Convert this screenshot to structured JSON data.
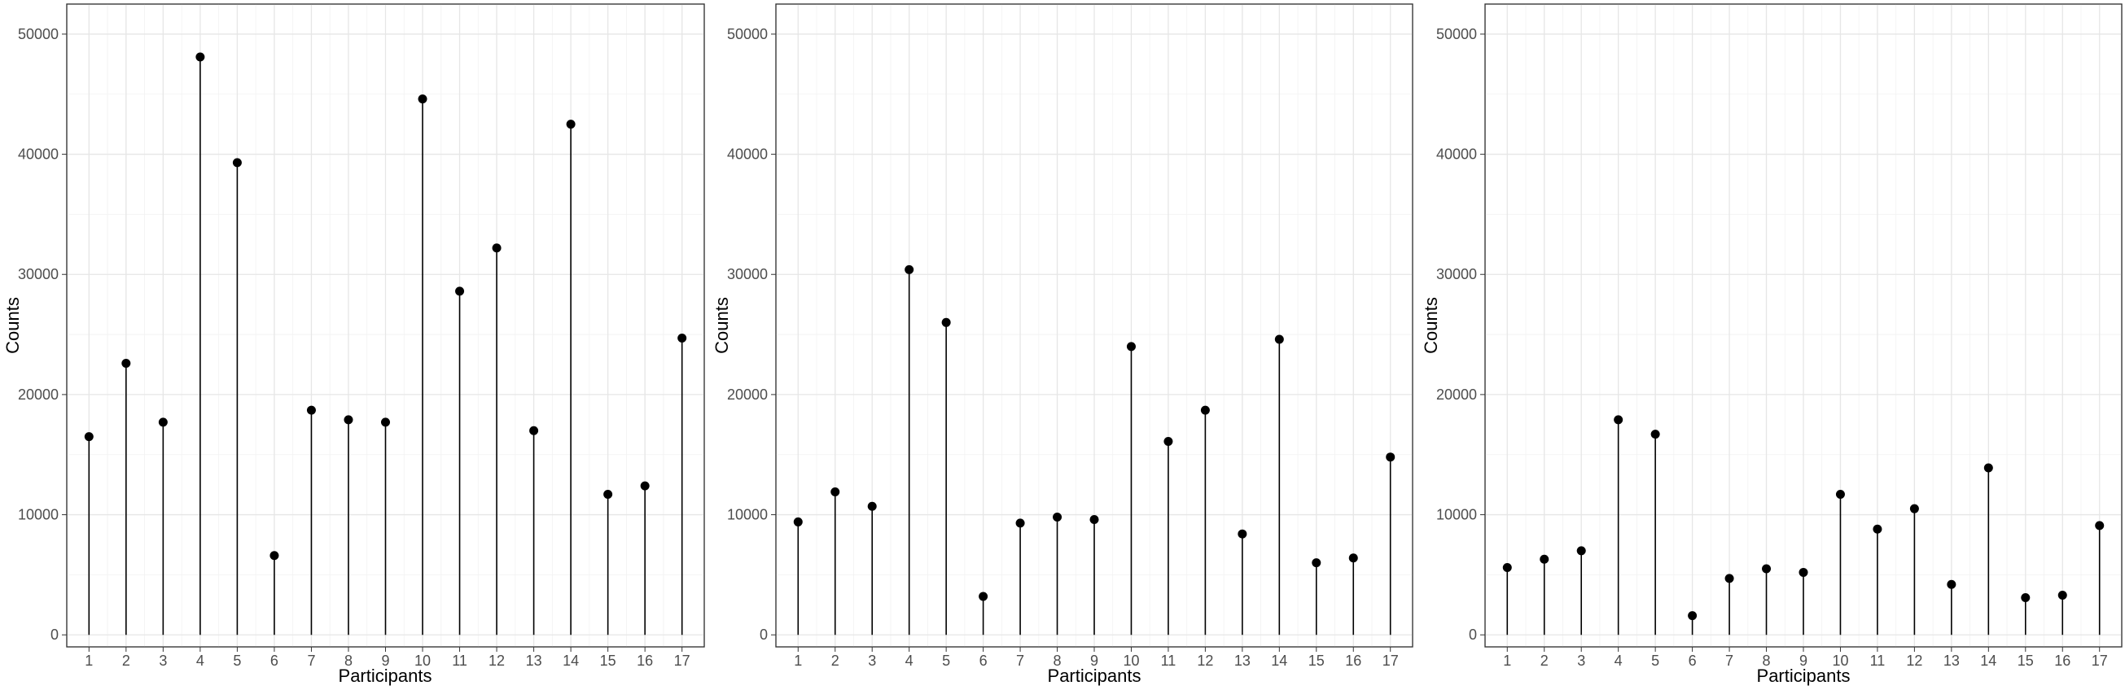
{
  "chart_data": [
    {
      "type": "lollipop",
      "xlabel": "Participants",
      "ylabel": "Counts",
      "categories": [
        "1",
        "2",
        "3",
        "4",
        "5",
        "6",
        "7",
        "8",
        "9",
        "10",
        "11",
        "12",
        "13",
        "14",
        "15",
        "16",
        "17"
      ],
      "values": [
        16500,
        22600,
        17700,
        48100,
        39300,
        6600,
        18700,
        17900,
        17700,
        44600,
        28600,
        32200,
        17000,
        42500,
        11700,
        12400,
        24700
      ],
      "yticks": [
        0,
        10000,
        20000,
        30000,
        40000,
        50000
      ],
      "ylim": [
        -1000,
        52500
      ],
      "grid": true
    },
    {
      "type": "lollipop",
      "xlabel": "Participants",
      "ylabel": "Counts",
      "categories": [
        "1",
        "2",
        "3",
        "4",
        "5",
        "6",
        "7",
        "8",
        "9",
        "10",
        "11",
        "12",
        "13",
        "14",
        "15",
        "16",
        "17"
      ],
      "values": [
        9400,
        11900,
        10700,
        30400,
        26000,
        3200,
        9300,
        9800,
        9600,
        24000,
        16100,
        18700,
        8400,
        24600,
        6000,
        6400,
        14800
      ],
      "yticks": [
        0,
        10000,
        20000,
        30000,
        40000,
        50000
      ],
      "ylim": [
        -1000,
        52500
      ],
      "grid": true
    },
    {
      "type": "lollipop",
      "xlabel": "Participants",
      "ylabel": "Counts",
      "categories": [
        "1",
        "2",
        "3",
        "4",
        "5",
        "6",
        "7",
        "8",
        "9",
        "10",
        "11",
        "12",
        "13",
        "14",
        "15",
        "16",
        "17"
      ],
      "values": [
        5600,
        6300,
        7000,
        17900,
        16700,
        1600,
        4700,
        5500,
        5200,
        11700,
        8800,
        10500,
        4200,
        13900,
        3100,
        3300,
        9100
      ],
      "yticks": [
        0,
        10000,
        20000,
        30000,
        40000,
        50000
      ],
      "ylim": [
        -1000,
        52500
      ],
      "grid": true
    }
  ]
}
